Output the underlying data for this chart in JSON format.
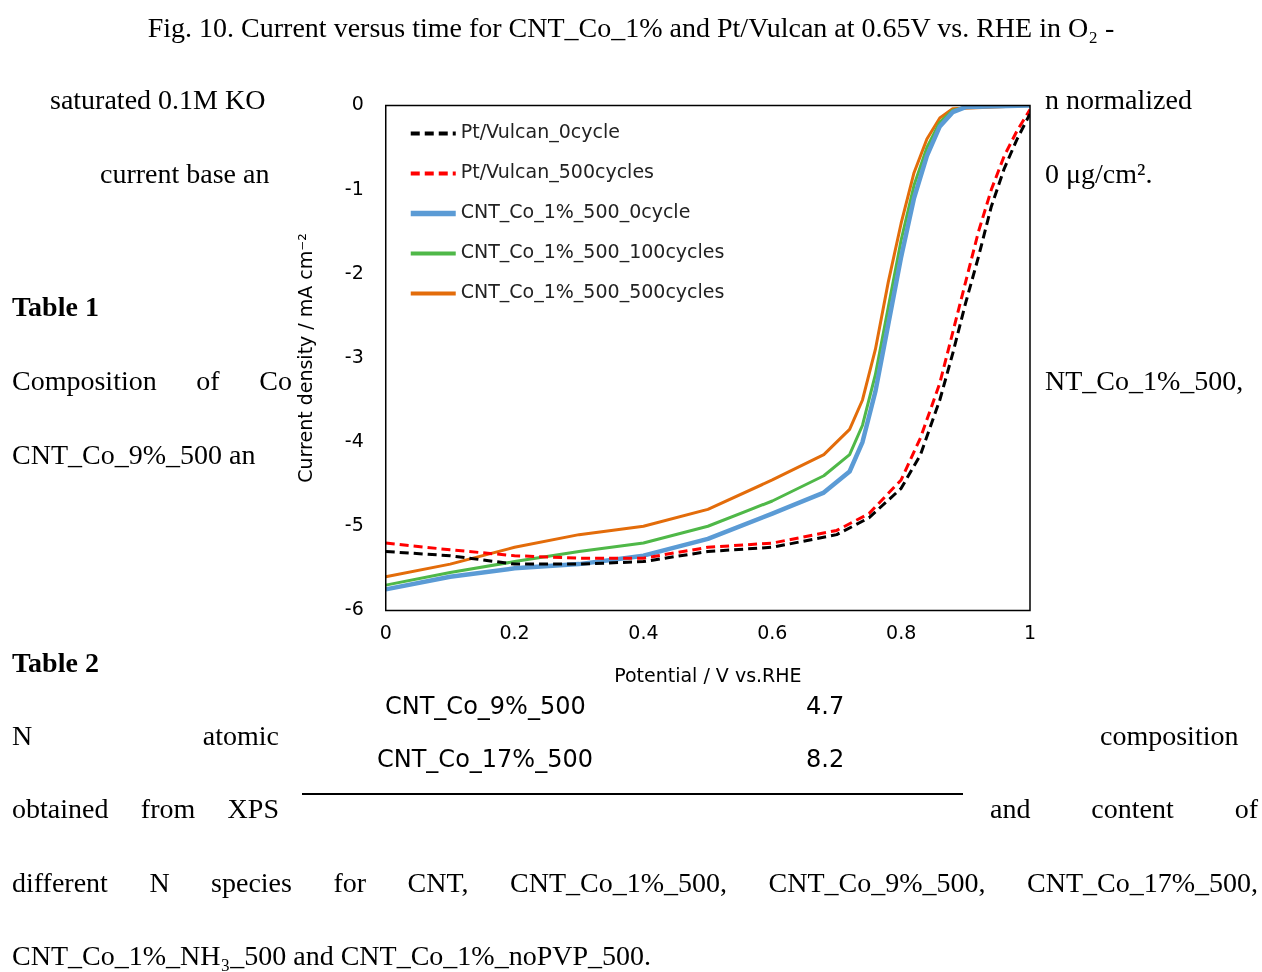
{
  "chart_data": {
    "type": "line",
    "title": "Fig. 10. Current versus time for CNT_Co_1% and Pt/Vulcan at 0.65V vs. RHE in O₂ -",
    "xlabel": "Potential / V vs.RHE",
    "ylabel": "Current density / mA cm⁻²",
    "xlim": [
      0,
      1
    ],
    "xticks": [
      0,
      0.2,
      0.4,
      0.6,
      0.8,
      1
    ],
    "ylim": [
      -6,
      0
    ],
    "yticks": [
      -6,
      -5,
      -4,
      -3,
      -2,
      -1,
      0
    ],
    "grid": false,
    "legend": "top left",
    "marker": "none",
    "series": [
      {
        "name": "Pt/Vulcan_0cycle",
        "color": "#000000",
        "line_style": "dashed",
        "x": [
          0,
          0.1,
          0.2,
          0.3,
          0.4,
          0.5,
          0.6,
          0.7,
          0.75,
          0.8,
          0.83,
          0.86,
          0.88,
          0.9,
          0.92,
          0.94,
          0.96,
          0.98,
          1
        ],
        "values": [
          -5.3,
          -5.35,
          -5.45,
          -5.45,
          -5.42,
          -5.3,
          -5.25,
          -5.1,
          -4.9,
          -4.55,
          -4.15,
          -3.5,
          -2.95,
          -2.35,
          -1.8,
          -1.2,
          -0.75,
          -0.4,
          -0.1
        ]
      },
      {
        "name": "Pt/Vulcan_500cycles",
        "color": "#ff0000",
        "line_style": "dashed",
        "x": [
          0,
          0.1,
          0.2,
          0.3,
          0.4,
          0.5,
          0.6,
          0.7,
          0.75,
          0.8,
          0.83,
          0.86,
          0.88,
          0.9,
          0.92,
          0.94,
          0.96,
          0.98,
          1
        ],
        "values": [
          -5.2,
          -5.28,
          -5.35,
          -5.38,
          -5.38,
          -5.25,
          -5.2,
          -5.05,
          -4.85,
          -4.45,
          -3.95,
          -3.3,
          -2.7,
          -2.1,
          -1.5,
          -1.0,
          -0.6,
          -0.3,
          -0.05
        ]
      },
      {
        "name": "CNT_Co_1%_500_0cycle",
        "color": "#5b9bd5",
        "line_style": "solid",
        "x": [
          0,
          0.1,
          0.2,
          0.3,
          0.4,
          0.5,
          0.6,
          0.68,
          0.72,
          0.74,
          0.76,
          0.78,
          0.8,
          0.82,
          0.84,
          0.86,
          0.88,
          0.9,
          1
        ],
        "values": [
          -5.75,
          -5.6,
          -5.5,
          -5.45,
          -5.35,
          -5.15,
          -4.85,
          -4.6,
          -4.35,
          -4.0,
          -3.4,
          -2.6,
          -1.8,
          -1.1,
          -0.6,
          -0.25,
          -0.08,
          -0.02,
          0
        ]
      },
      {
        "name": "CNT_Co_1%_500_100cycles",
        "color": "#4fb848",
        "line_style": "solid",
        "x": [
          0,
          0.1,
          0.2,
          0.3,
          0.4,
          0.5,
          0.6,
          0.68,
          0.72,
          0.74,
          0.76,
          0.78,
          0.8,
          0.82,
          0.84,
          0.86,
          0.88,
          0.9,
          1
        ],
        "values": [
          -5.7,
          -5.55,
          -5.42,
          -5.3,
          -5.2,
          -5.0,
          -4.7,
          -4.4,
          -4.15,
          -3.8,
          -3.2,
          -2.4,
          -1.6,
          -0.95,
          -0.5,
          -0.2,
          -0.06,
          -0.02,
          0
        ]
      },
      {
        "name": "CNT_Co_1%_500_500cycles",
        "color": "#e36c0a",
        "line_style": "solid",
        "x": [
          0,
          0.1,
          0.2,
          0.3,
          0.4,
          0.5,
          0.6,
          0.68,
          0.72,
          0.74,
          0.76,
          0.78,
          0.8,
          0.82,
          0.84,
          0.86,
          0.88,
          1
        ],
        "values": [
          -5.6,
          -5.45,
          -5.25,
          -5.1,
          -5.0,
          -4.8,
          -4.45,
          -4.15,
          -3.85,
          -3.5,
          -2.9,
          -2.1,
          -1.4,
          -0.8,
          -0.4,
          -0.15,
          -0.04,
          0
        ]
      }
    ],
    "annotations": [
      "saturated 0.1M KO",
      "n normalized",
      "current base an",
      "0 μg/cm².",
      "Table 1",
      "Composition of Co",
      "NT_Co_1%_500,",
      "CNT_Co_9%_500 an",
      "Table 2",
      "N atomic",
      "composition",
      "obtained from XPS",
      "and content of",
      "different N species for CNT, CNT_Co_1%_500, CNT_Co_9%_500, CNT_Co_17%_500,",
      "CNT_Co_1%_NH₃_500 and CNT_Co_1%_noPVP_500.",
      "CNT_Co_9%_500",
      "4.7",
      "CNT_Co_17%_500",
      "8.2"
    ]
  }
}
